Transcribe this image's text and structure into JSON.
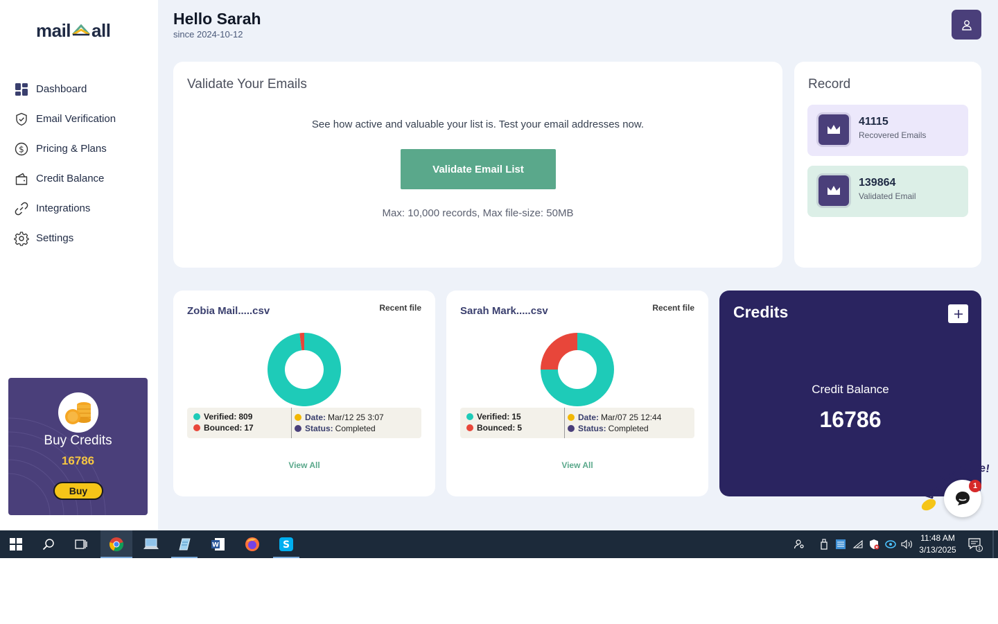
{
  "app": {
    "logo_left": "mail",
    "logo_right": "all"
  },
  "sidebar": {
    "items": [
      {
        "label": "Dashboard",
        "icon": "dashboard-icon"
      },
      {
        "label": "Email Verification",
        "icon": "shield-check-icon"
      },
      {
        "label": "Pricing & Plans",
        "icon": "dollar-icon"
      },
      {
        "label": "Credit Balance",
        "icon": "wallet-icon"
      },
      {
        "label": "Integrations",
        "icon": "link-icon"
      },
      {
        "label": "Settings",
        "icon": "gear-icon"
      }
    ],
    "buy_card": {
      "title": "Buy Credits",
      "count": "16786",
      "button": "Buy"
    }
  },
  "header": {
    "greeting": "Hello Sarah",
    "since": "since 2024-10-12"
  },
  "validate": {
    "title": "Validate Your Emails",
    "description": "See how active and valuable your list is. Test your email addresses now.",
    "button": "Validate Email List",
    "limits": "Max: 10,000 records, Max file-size: 50MB"
  },
  "record": {
    "title": "Record",
    "stats": [
      {
        "value": "41115",
        "caption": "Recovered Emails"
      },
      {
        "value": "139864",
        "caption": "Validated Email"
      }
    ]
  },
  "files": [
    {
      "name": "Zobia Mail.....csv",
      "tag": "Recent file",
      "verified_label": "Verified:",
      "verified": 809,
      "bounced_label": "Bounced:",
      "bounced": 17,
      "date_label": "Date:",
      "date": "Mar/12 25 3:07",
      "status_label": "Status:",
      "status": "Completed",
      "view_all": "View All"
    },
    {
      "name": "Sarah Mark.....csv",
      "tag": "Recent file",
      "verified_label": "Verified:",
      "verified": 15,
      "bounced_label": "Bounced:",
      "bounced": 5,
      "date_label": "Date:",
      "date": "Mar/07 25 12:44",
      "status_label": "Status:",
      "status": "Completed",
      "view_all": "View All"
    }
  ],
  "credits": {
    "title": "Credits",
    "balance_label": "Credit Balance",
    "balance": "16786"
  },
  "chat": {
    "banner": "We Are Here!",
    "badge": "1"
  },
  "taskbar": {
    "time": "11:48 AM",
    "date": "3/13/2025",
    "notifications": "1"
  },
  "colors": {
    "primary": "#4a3f7a",
    "green": "#5aa88b",
    "verified": "#1ecbb8",
    "bounced": "#e8463a",
    "date_dot": "#f2b705",
    "status_dot": "#4a3f7a",
    "credits_bg": "#2a2460"
  }
}
